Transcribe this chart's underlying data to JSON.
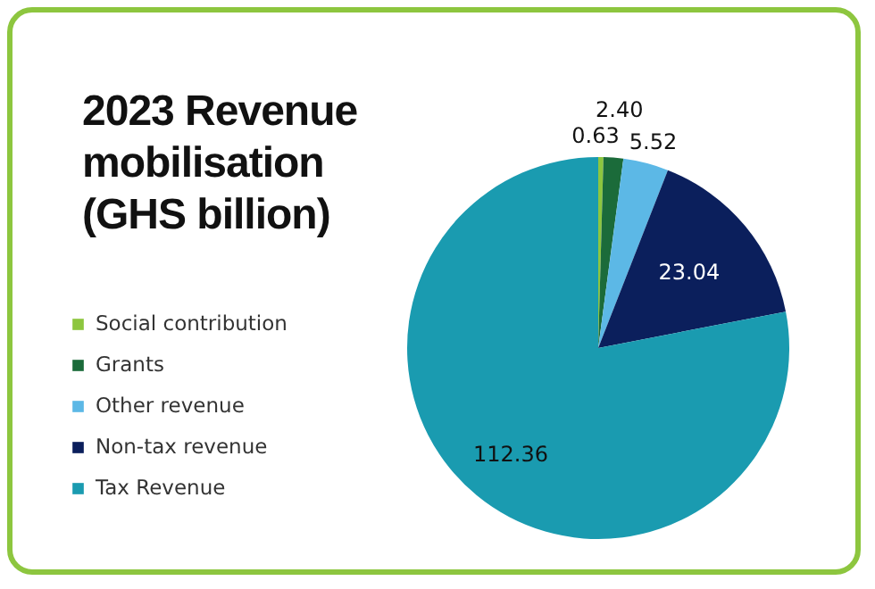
{
  "chart_data": {
    "type": "pie",
    "title": "2023 Revenue mobilisation (GHS billion)",
    "categories": [
      "Social contribution",
      "Grants",
      "Other revenue",
      "Non-tax revenue",
      "Tax Revenue"
    ],
    "values": [
      0.63,
      2.4,
      5.52,
      23.04,
      112.36
    ],
    "colors": [
      "#8dc63f",
      "#1b6b3a",
      "#5cb8e6",
      "#0b1f5c",
      "#1a9bb0"
    ],
    "value_labels": [
      "0.63",
      "2.40",
      "5.52",
      "23.04",
      "112.36"
    ],
    "legend": "left"
  }
}
